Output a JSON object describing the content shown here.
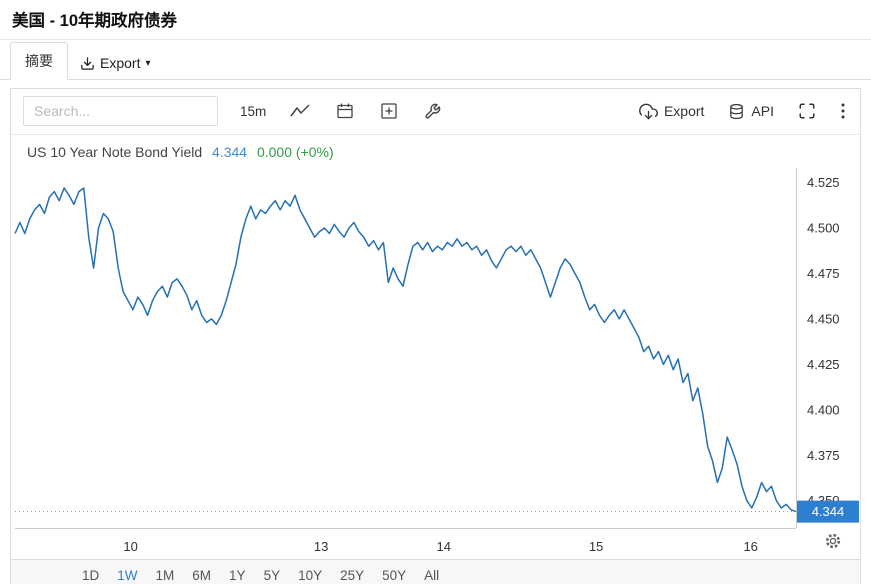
{
  "page": {
    "title": "美国 - 10年期政府债券"
  },
  "tabs": {
    "summary_label": "摘要",
    "export_label": "Export"
  },
  "toolbar": {
    "search_placeholder": "Search...",
    "interval_label": "15m",
    "export_label": "Export",
    "api_label": "API"
  },
  "chart_header": {
    "title": "US 10 Year Note Bond Yield",
    "value": "4.344",
    "change": "0.000 (+0%)"
  },
  "chart_data": {
    "type": "line",
    "title": "US 10 Year Note Bond Yield",
    "ylim": [
      4.335,
      4.533
    ],
    "y_ticks": [
      4.525,
      4.5,
      4.475,
      4.45,
      4.425,
      4.4,
      4.375,
      4.35
    ],
    "x_labels": [
      {
        "label": "10",
        "pos": 0.148
      },
      {
        "label": "13",
        "pos": 0.392
      },
      {
        "label": "14",
        "pos": 0.549
      },
      {
        "label": "15",
        "pos": 0.744
      },
      {
        "label": "16",
        "pos": 0.942
      }
    ],
    "last_value": 4.344,
    "badge": "4.344",
    "line_color": "#2470b3",
    "badge_color": "#2e7fd0",
    "series": [
      {
        "name": "US 10 Year Note Bond Yield",
        "values": [
          4.497,
          4.503,
          4.497,
          4.505,
          4.51,
          4.513,
          4.508,
          4.517,
          4.52,
          4.515,
          4.522,
          4.518,
          4.513,
          4.52,
          4.522,
          4.495,
          4.478,
          4.5,
          4.508,
          4.505,
          4.498,
          4.478,
          4.465,
          4.46,
          4.455,
          4.462,
          4.458,
          4.452,
          4.46,
          4.465,
          4.468,
          4.462,
          4.47,
          4.472,
          4.468,
          4.463,
          4.455,
          4.46,
          4.452,
          4.448,
          4.45,
          4.447,
          4.452,
          4.46,
          4.47,
          4.48,
          4.495,
          4.505,
          4.512,
          4.505,
          4.51,
          4.508,
          4.512,
          4.515,
          4.51,
          4.515,
          4.512,
          4.518,
          4.51,
          4.505,
          4.5,
          4.495,
          4.498,
          4.5,
          4.497,
          4.502,
          4.498,
          4.495,
          4.5,
          4.503,
          4.498,
          4.495,
          4.49,
          4.493,
          4.488,
          4.492,
          4.47,
          4.478,
          4.472,
          4.468,
          4.48,
          4.49,
          4.492,
          4.488,
          4.492,
          4.487,
          4.49,
          4.488,
          4.492,
          4.49,
          4.494,
          4.49,
          4.492,
          4.488,
          4.49,
          4.485,
          4.488,
          4.482,
          4.478,
          4.483,
          4.488,
          4.49,
          4.487,
          4.49,
          4.485,
          4.488,
          4.483,
          4.478,
          4.47,
          4.462,
          4.47,
          4.478,
          4.483,
          4.48,
          4.475,
          4.47,
          4.462,
          4.455,
          4.458,
          4.452,
          4.448,
          4.452,
          4.455,
          4.45,
          4.455,
          4.45,
          4.445,
          4.44,
          4.432,
          4.435,
          4.428,
          4.432,
          4.425,
          4.43,
          4.422,
          4.428,
          4.415,
          4.42,
          4.405,
          4.412,
          4.398,
          4.38,
          4.372,
          4.36,
          4.368,
          4.385,
          4.378,
          4.37,
          4.358,
          4.35,
          4.346,
          4.352,
          4.36,
          4.355,
          4.358,
          4.35,
          4.346,
          4.348,
          4.345,
          4.344
        ]
      }
    ]
  },
  "range": {
    "buttons": [
      "1D",
      "1W",
      "1M",
      "6M",
      "1Y",
      "5Y",
      "10Y",
      "25Y",
      "50Y",
      "All"
    ],
    "active": "1W"
  }
}
